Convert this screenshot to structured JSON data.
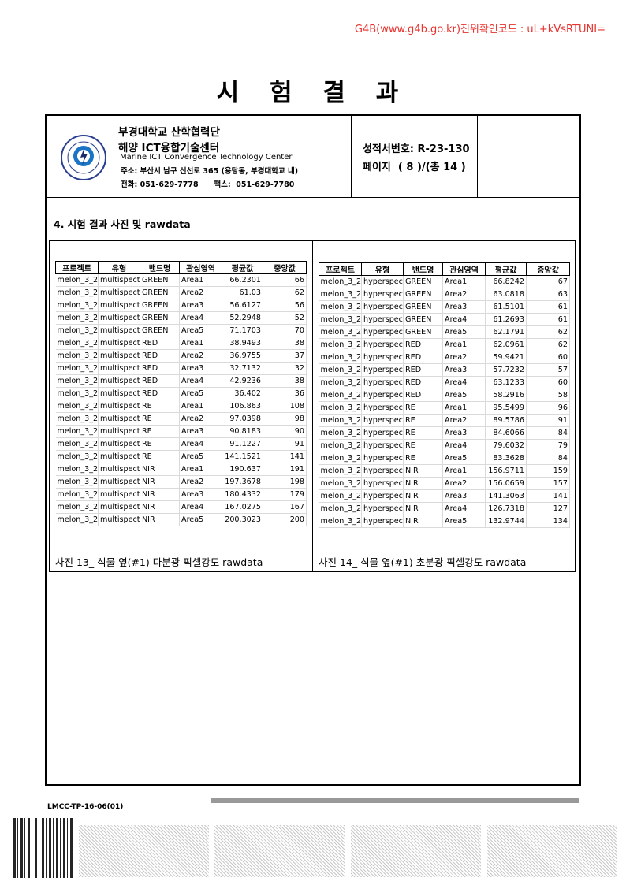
{
  "verification": "G4B(www.g4b.go.kr)진위확인코드 : uL+kVsRTUNI=",
  "title": "시 험 결 과",
  "header": {
    "org_line1": "부경대학교 산학협력단",
    "org_line2": "해양 ICT융합기술센터",
    "org_english": "Marine ICT Convergence Technology Center",
    "address": "주소: 부산시 남구 신선로 365 (용당동, 부경대학교 내)",
    "phone": "전화: 051-629-7778      팩스:  051-629-7780",
    "report_no": "성적서번호: R-23-130",
    "page": "페이지  ( 8 )/(총 14 )",
    "logo_text": "PUKYONG NATIONAL UNIVERSITY 부경대학교"
  },
  "section_title": "4. 시험 결과 사진 및 rawdata",
  "columns": [
    "프로젝트",
    "유형",
    "밴드명",
    "관심영역",
    "평균값",
    "중앙값"
  ],
  "left_table": {
    "caption": "사진 13_ 식물 옆(#1) 다분광 픽셀강도 rawdata",
    "rows": [
      [
        "melon_3_2",
        "multispect",
        "GREEN",
        "Area1",
        "66.2301",
        "66"
      ],
      [
        "melon_3_2",
        "multispect",
        "GREEN",
        "Area2",
        "61.03",
        "62"
      ],
      [
        "melon_3_2",
        "multispect",
        "GREEN",
        "Area3",
        "56.6127",
        "56"
      ],
      [
        "melon_3_2",
        "multispect",
        "GREEN",
        "Area4",
        "52.2948",
        "52"
      ],
      [
        "melon_3_2",
        "multispect",
        "GREEN",
        "Area5",
        "71.1703",
        "70"
      ],
      [
        "melon_3_2",
        "multispect",
        "RED",
        "Area1",
        "38.9493",
        "38"
      ],
      [
        "melon_3_2",
        "multispect",
        "RED",
        "Area2",
        "36.9755",
        "37"
      ],
      [
        "melon_3_2",
        "multispect",
        "RED",
        "Area3",
        "32.7132",
        "32"
      ],
      [
        "melon_3_2",
        "multispect",
        "RED",
        "Area4",
        "42.9236",
        "38"
      ],
      [
        "melon_3_2",
        "multispect",
        "RED",
        "Area5",
        "36.402",
        "36"
      ],
      [
        "melon_3_2",
        "multispect",
        "RE",
        "Area1",
        "106.863",
        "108"
      ],
      [
        "melon_3_2",
        "multispect",
        "RE",
        "Area2",
        "97.0398",
        "98"
      ],
      [
        "melon_3_2",
        "multispect",
        "RE",
        "Area3",
        "90.8183",
        "90"
      ],
      [
        "melon_3_2",
        "multispect",
        "RE",
        "Area4",
        "91.1227",
        "91"
      ],
      [
        "melon_3_2",
        "multispect",
        "RE",
        "Area5",
        "141.1521",
        "141"
      ],
      [
        "melon_3_2",
        "multispect",
        "NIR",
        "Area1",
        "190.637",
        "191"
      ],
      [
        "melon_3_2",
        "multispect",
        "NIR",
        "Area2",
        "197.3678",
        "198"
      ],
      [
        "melon_3_2",
        "multispect",
        "NIR",
        "Area3",
        "180.4332",
        "179"
      ],
      [
        "melon_3_2",
        "multispect",
        "NIR",
        "Area4",
        "167.0275",
        "167"
      ],
      [
        "melon_3_2",
        "multispect",
        "NIR",
        "Area5",
        "200.3023",
        "200"
      ]
    ]
  },
  "right_table": {
    "caption": "사진 14_ 식물 옆(#1) 초분광 픽셀강도 rawdata",
    "rows": [
      [
        "melon_3_2",
        "hyperspec",
        "GREEN",
        "Area1",
        "66.8242",
        "67"
      ],
      [
        "melon_3_2",
        "hyperspec",
        "GREEN",
        "Area2",
        "63.0818",
        "63"
      ],
      [
        "melon_3_2",
        "hyperspec",
        "GREEN",
        "Area3",
        "61.5101",
        "61"
      ],
      [
        "melon_3_2",
        "hyperspec",
        "GREEN",
        "Area4",
        "61.2693",
        "61"
      ],
      [
        "melon_3_2",
        "hyperspec",
        "GREEN",
        "Area5",
        "62.1791",
        "62"
      ],
      [
        "melon_3_2",
        "hyperspec",
        "RED",
        "Area1",
        "62.0961",
        "62"
      ],
      [
        "melon_3_2",
        "hyperspec",
        "RED",
        "Area2",
        "59.9421",
        "60"
      ],
      [
        "melon_3_2",
        "hyperspec",
        "RED",
        "Area3",
        "57.7232",
        "57"
      ],
      [
        "melon_3_2",
        "hyperspec",
        "RED",
        "Area4",
        "63.1233",
        "60"
      ],
      [
        "melon_3_2",
        "hyperspec",
        "RED",
        "Area5",
        "58.2916",
        "58"
      ],
      [
        "melon_3_2",
        "hyperspec",
        "RE",
        "Area1",
        "95.5499",
        "96"
      ],
      [
        "melon_3_2",
        "hyperspec",
        "RE",
        "Area2",
        "89.5786",
        "91"
      ],
      [
        "melon_3_2",
        "hyperspec",
        "RE",
        "Area3",
        "84.6066",
        "84"
      ],
      [
        "melon_3_2",
        "hyperspec",
        "RE",
        "Area4",
        "79.6032",
        "79"
      ],
      [
        "melon_3_2",
        "hyperspec",
        "RE",
        "Area5",
        "83.3628",
        "84"
      ],
      [
        "melon_3_2",
        "hyperspec",
        "NIR",
        "Area1",
        "156.9711",
        "159"
      ],
      [
        "melon_3_2",
        "hyperspec",
        "NIR",
        "Area2",
        "156.0659",
        "157"
      ],
      [
        "melon_3_2",
        "hyperspec",
        "NIR",
        "Area3",
        "141.3063",
        "141"
      ],
      [
        "melon_3_2",
        "hyperspec",
        "NIR",
        "Area4",
        "126.7318",
        "127"
      ],
      [
        "melon_3_2",
        "hyperspec",
        "NIR",
        "Area5",
        "132.9744",
        "134"
      ]
    ]
  },
  "footer": {
    "form_code": "LMCC-TP-16-06(01)"
  }
}
